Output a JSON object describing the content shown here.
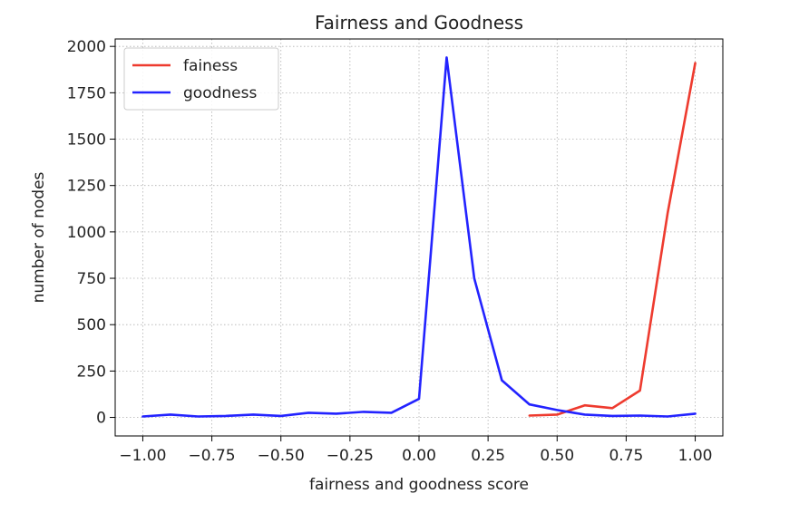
{
  "chart_data": {
    "type": "line",
    "title": "Fairness and Goodness",
    "xlabel": "fairness and goodness score",
    "ylabel": "number of nodes",
    "xlim": [
      -1.1,
      1.1
    ],
    "ylim": [
      -100,
      2040
    ],
    "x_ticks": [
      -1.0,
      -0.75,
      -0.5,
      -0.25,
      0.0,
      0.25,
      0.5,
      0.75,
      1.0
    ],
    "x_tick_labels": [
      "−1.00",
      "−0.75",
      "−0.50",
      "−0.25",
      "0.00",
      "0.25",
      "0.50",
      "0.75",
      "1.00"
    ],
    "y_ticks": [
      0,
      250,
      500,
      750,
      1000,
      1250,
      1500,
      1750,
      2000
    ],
    "y_tick_labels": [
      "0",
      "250",
      "500",
      "750",
      "1000",
      "1250",
      "1500",
      "1750",
      "2000"
    ],
    "grid": true,
    "legend_position": "top-left",
    "series": [
      {
        "name": "fainess",
        "color": "#ee3b2f",
        "x": [
          0.4,
          0.5,
          0.6,
          0.7,
          0.8,
          0.9,
          1.0
        ],
        "y": [
          10,
          15,
          65,
          50,
          145,
          1100,
          1910
        ]
      },
      {
        "name": "goodness",
        "color": "#2323ff",
        "x": [
          -1.0,
          -0.9,
          -0.8,
          -0.7,
          -0.6,
          -0.5,
          -0.4,
          -0.3,
          -0.2,
          -0.1,
          0.0,
          0.1,
          0.2,
          0.3,
          0.4,
          0.5,
          0.6,
          0.7,
          0.8,
          0.9,
          1.0
        ],
        "y": [
          5,
          15,
          5,
          8,
          15,
          8,
          25,
          20,
          30,
          25,
          100,
          1940,
          750,
          200,
          70,
          40,
          15,
          8,
          10,
          5,
          20
        ]
      }
    ]
  }
}
